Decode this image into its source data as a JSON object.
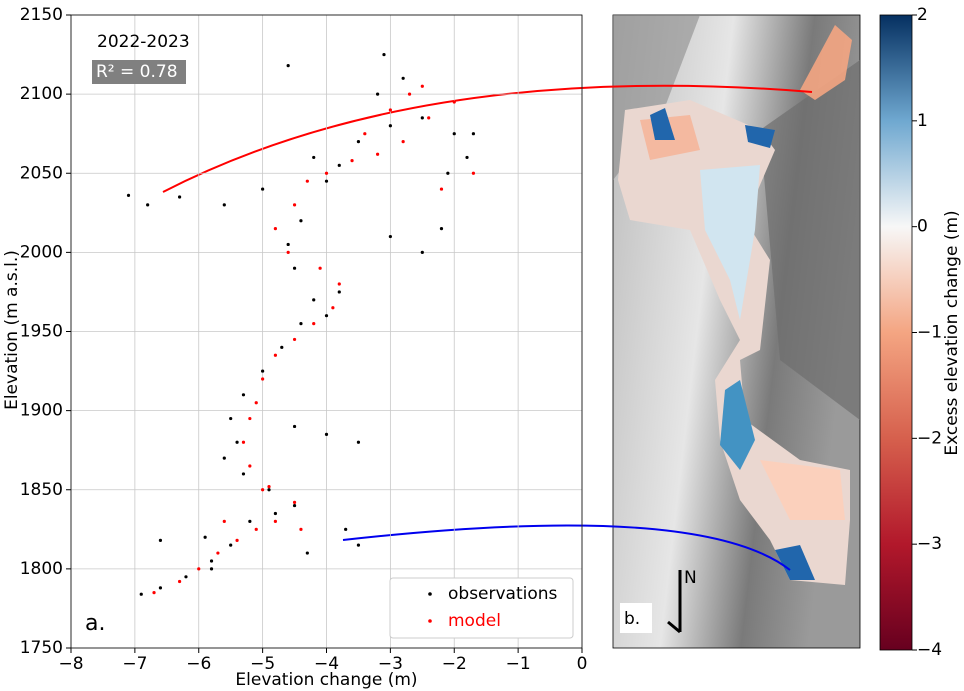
{
  "chart_data": [
    {
      "type": "scatter",
      "xlabel": "Elevation change (m)",
      "ylabel": "Elevation (m a.s.l.)",
      "annotations": [
        "2022-2023",
        "R² = 0.78",
        "a."
      ],
      "xlim": [
        -8,
        0
      ],
      "ylim": [
        1750,
        2150
      ],
      "xticks": [
        {
          "value": -8,
          "label": "−8"
        },
        {
          "value": -7,
          "label": "−7"
        },
        {
          "value": -6,
          "label": "−6"
        },
        {
          "value": -5,
          "label": "−5"
        },
        {
          "value": -4,
          "label": "−4"
        },
        {
          "value": -3,
          "label": "−3"
        },
        {
          "value": -2,
          "label": "−2"
        },
        {
          "value": -1,
          "label": "−1"
        },
        0
      ],
      "yticks": [
        1750,
        1800,
        1850,
        1900,
        1950,
        2000,
        2050,
        2100,
        2150
      ],
      "grid": true,
      "legend": "lower right",
      "series": [
        {
          "name": "observations",
          "color": "#000000",
          "x": [
            -6.9,
            -6.6,
            -6.2,
            -5.8,
            -5.5,
            -5.9,
            -5.2,
            -4.8,
            -4.5,
            -4.9,
            -5.3,
            -5.6,
            -5.4,
            -5.5,
            -4.5,
            -4.0,
            -3.5,
            -5.3,
            -5.0,
            -4.7,
            -4.4,
            -4.0,
            -3.8,
            -4.2,
            -4.5,
            -4.6,
            -4.4,
            -3.0,
            -2.5,
            -2.2,
            -4.0,
            -3.8,
            -4.2,
            -3.5,
            -3.0,
            -2.5,
            -2.0,
            -1.8,
            -2.1,
            -3.2,
            -2.8,
            -6.8,
            -7.1,
            -6.3,
            -5.6,
            -5.0,
            -3.7,
            -3.5,
            -6.6,
            -5.8,
            -4.3,
            -1.7,
            -4.6,
            -3.1
          ],
          "y": [
            1784,
            1788,
            1795,
            1805,
            1815,
            1820,
            1830,
            1835,
            1840,
            1850,
            1860,
            1870,
            1880,
            1895,
            1890,
            1885,
            1880,
            1910,
            1925,
            1940,
            1955,
            1960,
            1975,
            1970,
            1990,
            2005,
            2020,
            2010,
            2000,
            2015,
            2045,
            2055,
            2060,
            2070,
            2080,
            2085,
            2075,
            2060,
            2050,
            2100,
            2110,
            2030,
            2036,
            2035,
            2030,
            2040,
            1825,
            1815,
            1818,
            1800,
            1810,
            2075,
            2118,
            2125
          ]
        },
        {
          "name": "model",
          "color": "#ff0000",
          "x": [
            -6.7,
            -6.3,
            -6.0,
            -5.7,
            -5.4,
            -5.1,
            -4.8,
            -4.5,
            -4.9,
            -5.2,
            -5.3,
            -5.2,
            -5.1,
            -5.0,
            -4.8,
            -4.5,
            -4.2,
            -3.9,
            -3.8,
            -4.1,
            -4.6,
            -4.8,
            -4.5,
            -4.3,
            -4.0,
            -3.6,
            -3.2,
            -2.8,
            -2.4,
            -2.0,
            -2.5,
            -3.0,
            -3.4,
            -1.7,
            -2.2,
            -2.7,
            -5.0,
            -4.4,
            -5.6
          ],
          "y": [
            1785,
            1792,
            1800,
            1810,
            1818,
            1825,
            1830,
            1842,
            1852,
            1865,
            1880,
            1895,
            1905,
            1920,
            1935,
            1945,
            1955,
            1965,
            1980,
            1990,
            2000,
            2015,
            2030,
            2045,
            2050,
            2058,
            2062,
            2070,
            2085,
            2095,
            2105,
            2090,
            2075,
            2050,
            2040,
            2100,
            1850,
            1825,
            1830
          ]
        }
      ]
    },
    {
      "type": "colorbar",
      "label": "Excess elevation change (m)",
      "ylim": [
        -4,
        2
      ],
      "yticks": [
        {
          "value": -4,
          "label": "−4"
        },
        {
          "value": -3,
          "label": "−3"
        },
        {
          "value": -2,
          "label": "−2"
        },
        {
          "value": -1,
          "label": "−1"
        },
        0,
        1,
        2
      ],
      "colors": [
        "#67001f",
        "#b2182b",
        "#d6604d",
        "#f4a582",
        "#f7f7f7",
        "#6fa8d0",
        "#053061"
      ],
      "map_labels": [
        "b.",
        "N"
      ]
    }
  ]
}
